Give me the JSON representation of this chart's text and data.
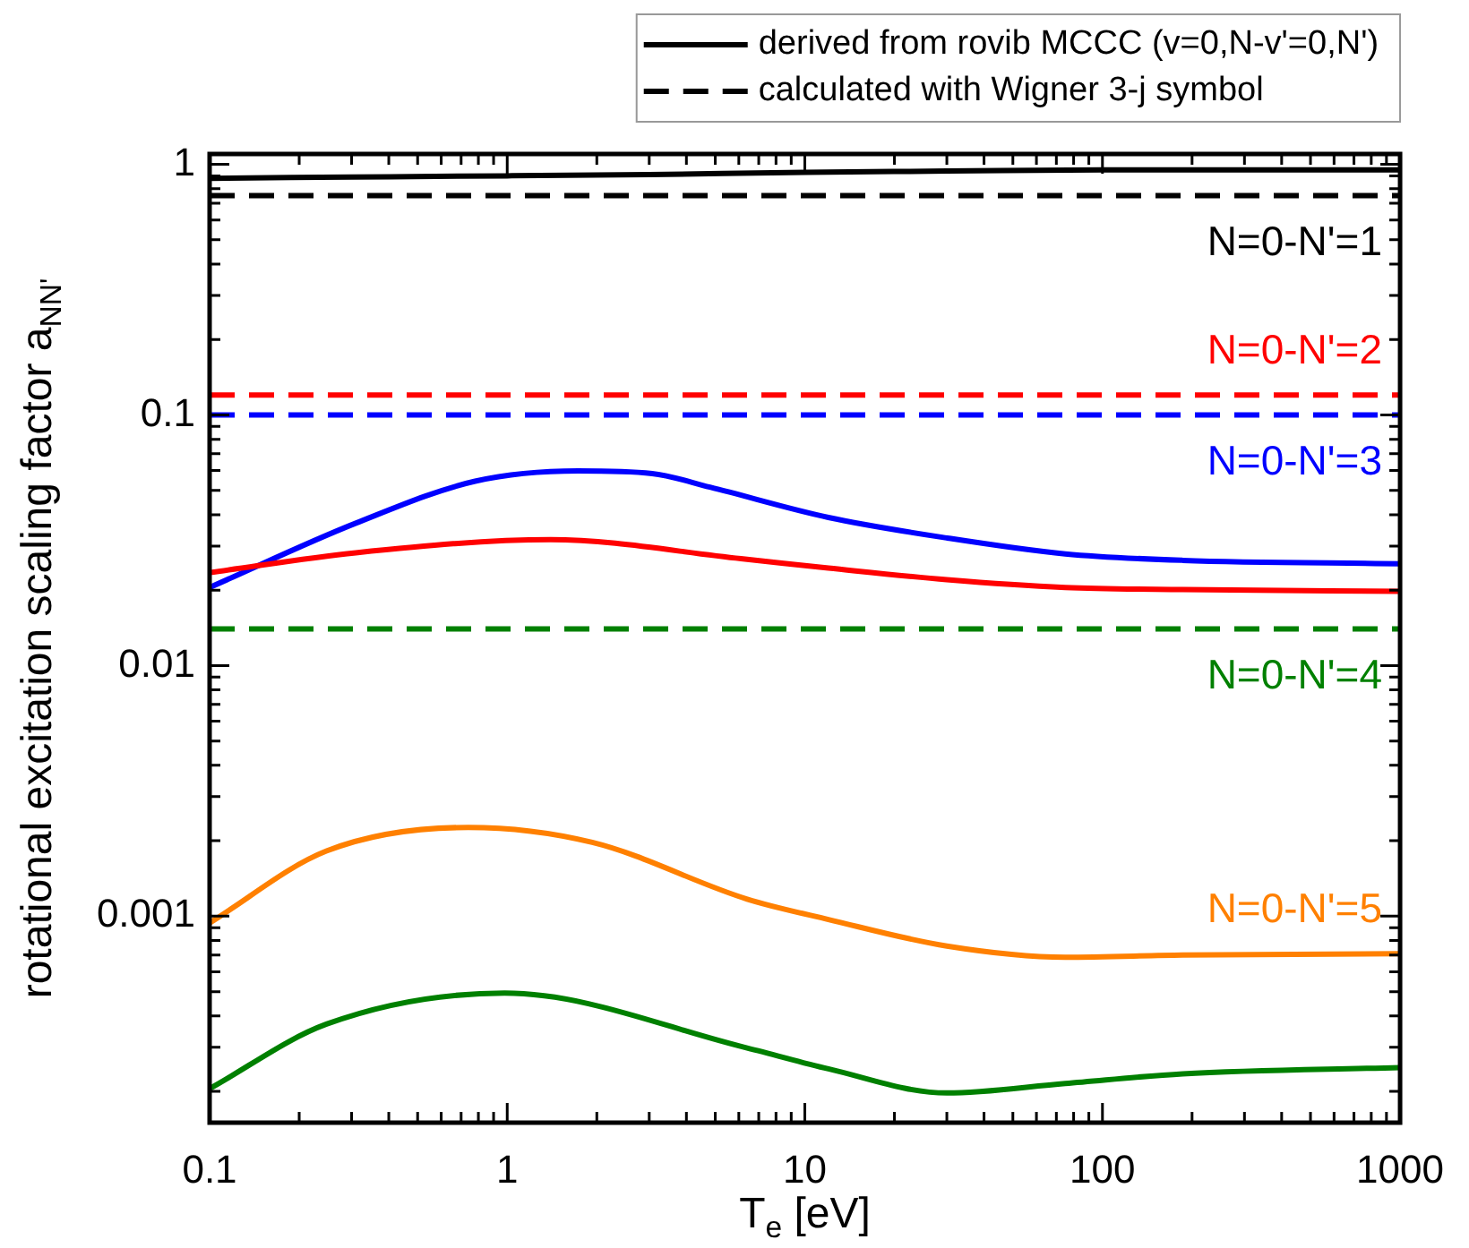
{
  "chart_data": {
    "type": "line",
    "xlabel": "T$_{e}$ [eV]",
    "ylabel": "rotational excitation scaling factor a$_{NN'}$",
    "log": "xy",
    "xlim": [
      0.1,
      1000
    ],
    "ylim": [
      0.00015,
      1.1
    ],
    "xticks": [
      0.1,
      {
        "value": 0.2,
        "label": null
      },
      {
        "value": 0.3,
        "label": null
      },
      {
        "value": 0.4,
        "label": null
      },
      {
        "value": 0.5,
        "label": null
      },
      {
        "value": 0.6,
        "label": null
      },
      {
        "value": 0.7,
        "label": null
      },
      {
        "value": 0.8,
        "label": null
      },
      {
        "value": 0.9,
        "label": null
      },
      1,
      {
        "value": 2,
        "label": null
      },
      {
        "value": 3,
        "label": null
      },
      {
        "value": 4,
        "label": null
      },
      {
        "value": 5,
        "label": null
      },
      {
        "value": 6,
        "label": null
      },
      {
        "value": 7,
        "label": null
      },
      {
        "value": 8,
        "label": null
      },
      {
        "value": 9,
        "label": null
      },
      10,
      {
        "value": 20,
        "label": null
      },
      {
        "value": 30,
        "label": null
      },
      {
        "value": 40,
        "label": null
      },
      {
        "value": 50,
        "label": null
      },
      {
        "value": 60,
        "label": null
      },
      {
        "value": 70,
        "label": null
      },
      {
        "value": 80,
        "label": null
      },
      {
        "value": 90,
        "label": null
      },
      100,
      {
        "value": 200,
        "label": null
      },
      {
        "value": 300,
        "label": null
      },
      {
        "value": 400,
        "label": null
      },
      {
        "value": 500,
        "label": null
      },
      {
        "value": 600,
        "label": null
      },
      {
        "value": 700,
        "label": null
      },
      {
        "value": 800,
        "label": null
      },
      {
        "value": 900,
        "label": null
      },
      1000
    ],
    "yticks": [
      {
        "value": 0.0002,
        "label": null
      },
      {
        "value": 0.0003,
        "label": null
      },
      {
        "value": 0.0004,
        "label": null
      },
      {
        "value": 0.0005,
        "label": null
      },
      {
        "value": 0.0006,
        "label": null
      },
      {
        "value": 0.0007,
        "label": null
      },
      {
        "value": 0.0008,
        "label": null
      },
      {
        "value": 0.0009,
        "label": null
      },
      0.001,
      {
        "value": 0.002,
        "label": null
      },
      {
        "value": 0.003,
        "label": null
      },
      {
        "value": 0.004,
        "label": null
      },
      {
        "value": 0.005,
        "label": null
      },
      {
        "value": 0.006,
        "label": null
      },
      {
        "value": 0.007,
        "label": null
      },
      {
        "value": 0.008,
        "label": null
      },
      {
        "value": 0.009,
        "label": null
      },
      0.01,
      {
        "value": 0.02,
        "label": null
      },
      {
        "value": 0.03,
        "label": null
      },
      {
        "value": 0.04,
        "label": null
      },
      {
        "value": 0.05,
        "label": null
      },
      {
        "value": 0.06,
        "label": null
      },
      {
        "value": 0.07,
        "label": null
      },
      {
        "value": 0.08,
        "label": null
      },
      {
        "value": 0.09,
        "label": null
      },
      0.1,
      {
        "value": 0.2,
        "label": null
      },
      {
        "value": 0.3,
        "label": null
      },
      {
        "value": 0.4,
        "label": null
      },
      {
        "value": 0.5,
        "label": null
      },
      {
        "value": 0.6,
        "label": null
      },
      {
        "value": 0.7,
        "label": null
      },
      {
        "value": 0.8,
        "label": null
      },
      {
        "value": 0.9,
        "label": null
      },
      1
    ],
    "grid": false,
    "legend": "top right",
    "marker": "none",
    "series": [
      {
        "name": "derived from rovib MCCC (v=0,N-v'=0,N')",
        "color": "#000000",
        "line_style": "solid",
        "x": [
          0.1,
          0.3,
          1,
          3,
          10,
          30,
          100,
          300,
          1000
        ],
        "values": [
          0.88,
          0.89,
          0.9,
          0.91,
          0.93,
          0.94,
          0.95,
          0.95,
          0.95
        ]
      },
      {
        "name": "calculated with Wigner 3-j symbol",
        "color": "#000000",
        "line_style": "dashed",
        "x": [
          0.1,
          1000
        ],
        "values": [
          0.75,
          0.75
        ]
      },
      {
        "color": "#ff0000",
        "line_style": "solid",
        "x": [
          0.1,
          0.31,
          1.4,
          6.1,
          12,
          30,
          75,
          186,
          1000
        ],
        "values": [
          0.0235,
          0.0282,
          0.0318,
          0.0267,
          0.0245,
          0.022,
          0.0205,
          0.0201,
          0.0198
        ]
      },
      {
        "color": "#ff0000",
        "line_style": "dashed",
        "x": [
          0.1,
          1000
        ],
        "values": [
          0.12,
          0.12
        ]
      },
      {
        "color": "#0000ff",
        "line_style": "solid",
        "x": [
          0.1,
          0.31,
          0.78,
          1.73,
          3.07,
          4.8,
          12,
          30,
          75,
          186,
          1000
        ],
        "values": [
          0.0205,
          0.037,
          0.0544,
          0.0598,
          0.0584,
          0.0515,
          0.039,
          0.0323,
          0.0279,
          0.0263,
          0.0255
        ]
      },
      {
        "color": "#0000ff",
        "line_style": "dashed",
        "x": [
          0.1,
          1000
        ],
        "values": [
          0.1,
          0.1
        ]
      },
      {
        "color": "#008000",
        "line_style": "solid",
        "x": [
          0.1,
          0.247,
          0.98,
          6.4,
          12,
          30,
          75,
          186,
          1000
        ],
        "values": [
          0.000205,
          0.000371,
          0.000493,
          0.000298,
          0.000246,
          0.000197,
          0.000215,
          0.000235,
          0.000249
        ]
      },
      {
        "color": "#008000",
        "line_style": "dashed",
        "x": [
          0.1,
          1000
        ],
        "values": [
          0.014,
          0.014
        ]
      },
      {
        "color": "#ff8000",
        "line_style": "solid",
        "x": [
          0.1,
          0.247,
          0.74,
          1.93,
          6.4,
          12,
          30,
          75,
          186,
          1000
        ],
        "values": [
          0.00094,
          0.00182,
          0.00226,
          0.00197,
          0.00117,
          0.00097,
          0.00076,
          0.000686,
          0.0007,
          0.000708
        ]
      }
    ],
    "annotations": [
      "N=0-N'=1",
      "N=0-N'=2",
      "N=0-N'=3",
      "N=0-N'=4",
      "N=0-N'=5"
    ]
  }
}
